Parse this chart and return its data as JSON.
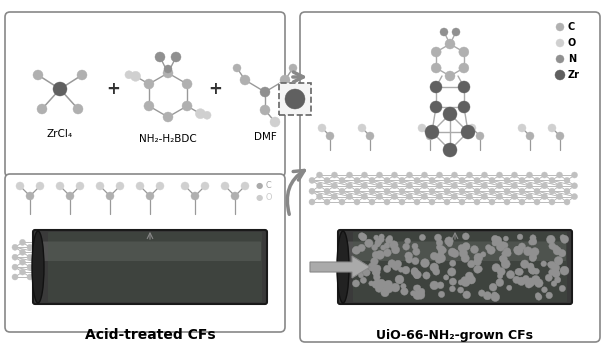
{
  "background_color": "#ffffff",
  "label_acid_cf": "Acid-treated CFs",
  "label_uio_cf": "UiO-66-NH₂-grown CFs",
  "label_zrcl4": "ZrCl₄",
  "label_nh2": "NH₂-H₂BDC",
  "label_dmf": "DMF",
  "legend_C": "C",
  "legend_O": "O",
  "legend_N": "N",
  "legend_Zr": "Zr",
  "fig_width": 6.05,
  "fig_height": 3.57,
  "dpi": 100,
  "text_color": "#000000",
  "font_size_label": 9,
  "font_size_sublabel": 7.5,
  "font_size_legend": 7
}
